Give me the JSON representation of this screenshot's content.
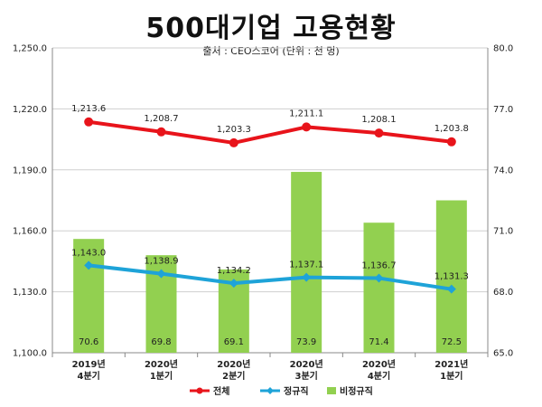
{
  "title": "500대기업 고용현황",
  "source": "출처 : CEO스코어 (단위 : 천 명)",
  "chart_data": {
    "type": "bar",
    "categories": [
      [
        "2019년",
        "4분기"
      ],
      [
        "2020년",
        "1분기"
      ],
      [
        "2020년",
        "2분기"
      ],
      [
        "2020년",
        "3분기"
      ],
      [
        "2020년",
        "4분기"
      ],
      [
        "2021년",
        "1분기"
      ]
    ],
    "left_axis": {
      "ylim": [
        1100.0,
        1250.0
      ],
      "ticks": [
        "1,100.0",
        "1,130.0",
        "1,160.0",
        "1,190.0",
        "1,220.0",
        "1,250.0"
      ],
      "tick_values": [
        1100,
        1130,
        1160,
        1190,
        1220,
        1250
      ]
    },
    "right_axis": {
      "ylim": [
        65.0,
        80.0
      ],
      "ticks": [
        "65.0",
        "68.0",
        "71.0",
        "74.0",
        "77.0",
        "80.0"
      ],
      "tick_values": [
        65,
        68,
        71,
        74,
        77,
        80
      ]
    },
    "grid": true,
    "legend_position": "bottom",
    "series": [
      {
        "name": "전체",
        "kind": "line",
        "axis": "left",
        "color": "#e8141b",
        "values": [
          1213.6,
          1208.7,
          1203.3,
          1211.1,
          1208.1,
          1203.8
        ],
        "labels": [
          "1,213.6",
          "1,208.7",
          "1,203.3",
          "1,211.1",
          "1,208.1",
          "1,203.8"
        ]
      },
      {
        "name": "정규직",
        "kind": "line",
        "axis": "left",
        "color": "#1ea3d8",
        "values": [
          1143.0,
          1138.9,
          1134.2,
          1137.1,
          1136.7,
          1131.3
        ],
        "labels": [
          "1,143.0",
          "1,138.9",
          "1,134.2",
          "1,137.1",
          "1,136.7",
          "1,131.3"
        ]
      },
      {
        "name": "비정규직",
        "kind": "bar",
        "axis": "right",
        "color": "#92d050",
        "values": [
          70.6,
          69.8,
          69.1,
          73.9,
          71.4,
          72.5
        ],
        "labels": [
          "70.6",
          "69.8",
          "69.1",
          "73.9",
          "71.4",
          "72.5"
        ]
      }
    ]
  }
}
